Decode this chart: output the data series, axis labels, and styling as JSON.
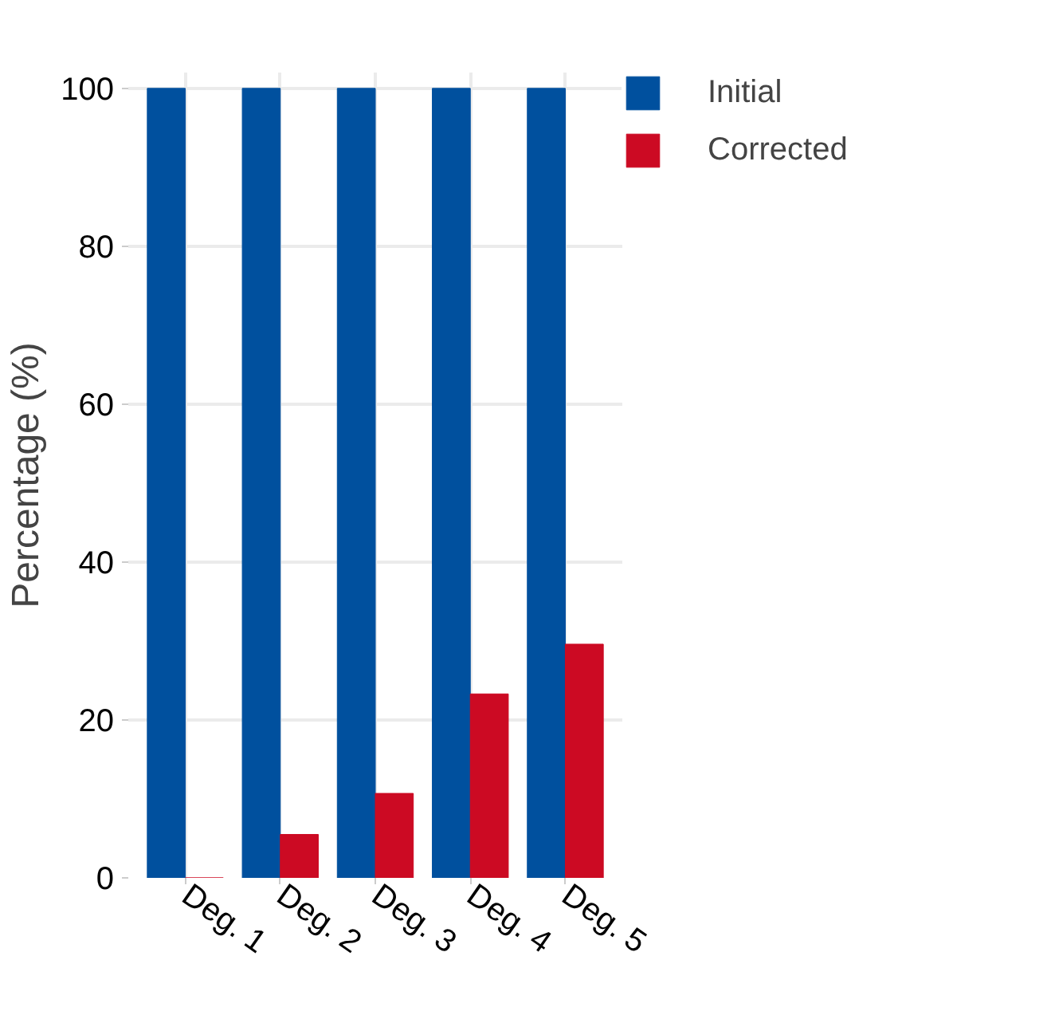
{
  "chart_data": {
    "type": "bar",
    "ylabel": "Percentage (%)",
    "categories": [
      "Deg. 1",
      "Deg. 2",
      "Deg. 3",
      "Deg. 4",
      "Deg. 5"
    ],
    "series": [
      {
        "name": "Initial",
        "color": "#00509e",
        "values": [
          100,
          100,
          100,
          100,
          100
        ]
      },
      {
        "name": "Corrected",
        "color": "#cc0a23",
        "values": [
          0,
          5.5,
          10.7,
          23.3,
          29.6
        ]
      }
    ],
    "ylim": [
      0,
      102
    ],
    "yticks": [
      0,
      20,
      40,
      60,
      80,
      100
    ],
    "grid": true,
    "legend": "top right"
  }
}
